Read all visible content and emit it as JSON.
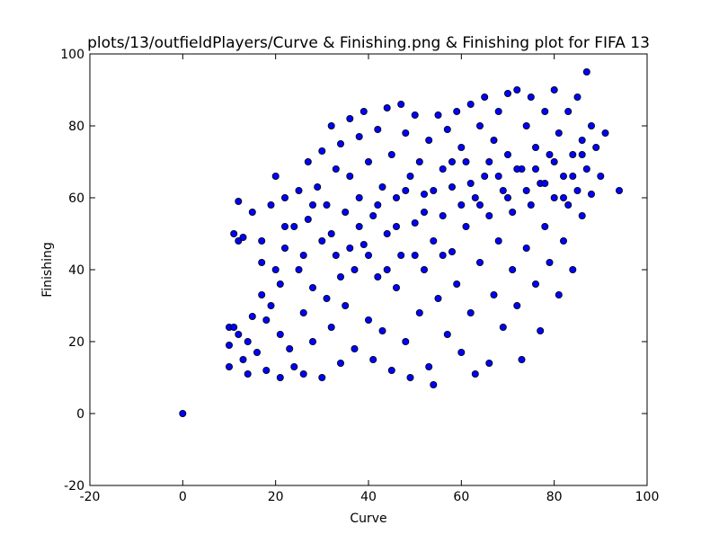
{
  "chart_data": {
    "type": "scatter",
    "title": "plots/13/outfieldPlayers/Curve & Finishing.png & Finishing plot for FIFA 13",
    "xlabel": "Curve",
    "ylabel": "Finishing",
    "xlim": [
      -20,
      100
    ],
    "ylim": [
      -20,
      100
    ],
    "xticks": [
      -20,
      0,
      20,
      40,
      60,
      80,
      100
    ],
    "yticks": [
      -20,
      0,
      20,
      40,
      60,
      80,
      100
    ],
    "grid": false,
    "legend": "none",
    "marker_color": "#0000ff",
    "marker_edge": "#000000",
    "series": [
      {
        "points": [
          [
            0,
            0
          ],
          [
            10,
            24
          ],
          [
            11,
            50
          ],
          [
            12,
            48
          ],
          [
            12,
            59
          ],
          [
            13,
            49
          ],
          [
            10,
            19
          ],
          [
            10,
            13
          ],
          [
            11,
            24
          ],
          [
            12,
            22
          ],
          [
            13,
            15
          ],
          [
            14,
            20
          ],
          [
            15,
            56
          ],
          [
            15,
            27
          ],
          [
            14,
            11
          ],
          [
            16,
            17
          ],
          [
            17,
            48
          ],
          [
            17,
            42
          ],
          [
            17,
            33
          ],
          [
            18,
            26
          ],
          [
            18,
            12
          ],
          [
            19,
            58
          ],
          [
            19,
            30
          ],
          [
            20,
            66
          ],
          [
            21,
            36
          ],
          [
            21,
            22
          ],
          [
            21,
            10
          ],
          [
            22,
            60
          ],
          [
            22,
            46
          ],
          [
            23,
            18
          ],
          [
            24,
            52
          ],
          [
            24,
            13
          ],
          [
            25,
            62
          ],
          [
            25,
            40
          ],
          [
            26,
            28
          ],
          [
            26,
            11
          ],
          [
            27,
            54
          ],
          [
            27,
            70
          ],
          [
            28,
            35
          ],
          [
            28,
            20
          ],
          [
            29,
            63
          ],
          [
            30,
            48
          ],
          [
            30,
            73
          ],
          [
            30,
            10
          ],
          [
            31,
            32
          ],
          [
            31,
            58
          ],
          [
            32,
            80
          ],
          [
            32,
            24
          ],
          [
            33,
            68
          ],
          [
            33,
            44
          ],
          [
            34,
            14
          ],
          [
            34,
            75
          ],
          [
            35,
            56
          ],
          [
            35,
            30
          ],
          [
            36,
            82
          ],
          [
            36,
            66
          ],
          [
            37,
            40
          ],
          [
            37,
            18
          ],
          [
            38,
            77
          ],
          [
            38,
            60
          ],
          [
            39,
            84
          ],
          [
            39,
            47
          ],
          [
            40,
            26
          ],
          [
            40,
            70
          ],
          [
            41,
            15
          ],
          [
            41,
            55
          ],
          [
            42,
            79
          ],
          [
            42,
            38
          ],
          [
            43,
            63
          ],
          [
            43,
            23
          ],
          [
            44,
            85
          ],
          [
            44,
            50
          ],
          [
            45,
            12
          ],
          [
            45,
            72
          ],
          [
            46,
            35
          ],
          [
            46,
            60
          ],
          [
            47,
            86
          ],
          [
            47,
            44
          ],
          [
            48,
            78
          ],
          [
            48,
            20
          ],
          [
            49,
            66
          ],
          [
            49,
            10
          ],
          [
            50,
            53
          ],
          [
            50,
            83
          ],
          [
            51,
            28
          ],
          [
            51,
            70
          ],
          [
            52,
            40
          ],
          [
            52,
            61
          ],
          [
            53,
            13
          ],
          [
            53,
            76
          ],
          [
            54,
            8
          ],
          [
            54,
            48
          ],
          [
            55,
            83
          ],
          [
            55,
            32
          ],
          [
            56,
            68
          ],
          [
            56,
            55
          ],
          [
            57,
            22
          ],
          [
            57,
            79
          ],
          [
            58,
            45
          ],
          [
            58,
            63
          ],
          [
            59,
            36
          ],
          [
            59,
            84
          ],
          [
            60,
            74
          ],
          [
            60,
            17
          ],
          [
            61,
            52
          ],
          [
            61,
            70
          ],
          [
            62,
            28
          ],
          [
            62,
            86
          ],
          [
            63,
            60
          ],
          [
            63,
            11
          ],
          [
            64,
            80
          ],
          [
            64,
            42
          ],
          [
            65,
            66
          ],
          [
            65,
            88
          ],
          [
            66,
            14
          ],
          [
            66,
            55
          ],
          [
            67,
            76
          ],
          [
            67,
            33
          ],
          [
            68,
            84
          ],
          [
            68,
            48
          ],
          [
            69,
            62
          ],
          [
            69,
            24
          ],
          [
            70,
            89
          ],
          [
            70,
            72
          ],
          [
            71,
            40
          ],
          [
            71,
            56
          ],
          [
            72,
            90
          ],
          [
            72,
            30
          ],
          [
            73,
            68
          ],
          [
            73,
            15
          ],
          [
            74,
            80
          ],
          [
            74,
            46
          ],
          [
            75,
            58
          ],
          [
            75,
            88
          ],
          [
            76,
            36
          ],
          [
            76,
            74
          ],
          [
            77,
            64
          ],
          [
            77,
            23
          ],
          [
            78,
            84
          ],
          [
            78,
            52
          ],
          [
            79,
            42
          ],
          [
            79,
            72
          ],
          [
            80,
            90
          ],
          [
            80,
            60
          ],
          [
            81,
            33
          ],
          [
            81,
            78
          ],
          [
            82,
            66
          ],
          [
            82,
            48
          ],
          [
            83,
            84
          ],
          [
            83,
            58
          ],
          [
            84,
            72
          ],
          [
            84,
            40
          ],
          [
            85,
            88
          ],
          [
            85,
            62
          ],
          [
            86,
            76
          ],
          [
            86,
            55
          ],
          [
            87,
            95
          ],
          [
            87,
            68
          ],
          [
            88,
            80
          ],
          [
            88,
            61
          ],
          [
            89,
            74
          ],
          [
            90,
            66
          ],
          [
            91,
            78
          ],
          [
            94,
            62
          ],
          [
            20,
            40
          ],
          [
            22,
            52
          ],
          [
            26,
            44
          ],
          [
            28,
            58
          ],
          [
            32,
            50
          ],
          [
            34,
            38
          ],
          [
            36,
            46
          ],
          [
            38,
            52
          ],
          [
            40,
            44
          ],
          [
            42,
            58
          ],
          [
            44,
            40
          ],
          [
            46,
            52
          ],
          [
            48,
            62
          ],
          [
            50,
            44
          ],
          [
            52,
            56
          ],
          [
            54,
            62
          ],
          [
            56,
            44
          ],
          [
            58,
            70
          ],
          [
            60,
            58
          ],
          [
            62,
            64
          ],
          [
            64,
            58
          ],
          [
            66,
            70
          ],
          [
            68,
            66
          ],
          [
            70,
            60
          ],
          [
            72,
            68
          ],
          [
            74,
            62
          ],
          [
            76,
            68
          ],
          [
            78,
            64
          ],
          [
            80,
            70
          ],
          [
            82,
            60
          ],
          [
            84,
            66
          ],
          [
            86,
            72
          ]
        ]
      }
    ]
  }
}
